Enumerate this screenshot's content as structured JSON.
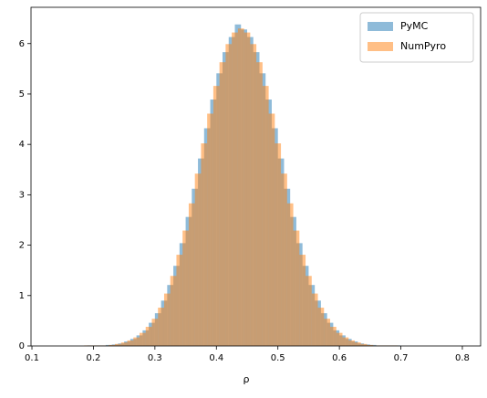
{
  "chart_data": {
    "type": "histogram",
    "xlabel": "ρ",
    "xlim": [
      0.0985,
      0.8297
    ],
    "ylim": [
      0,
      6.72
    ],
    "xticks": [
      0.1,
      0.2,
      0.3,
      0.4,
      0.5,
      0.6,
      0.7,
      0.8
    ],
    "yticks": [
      0,
      1,
      2,
      3,
      4,
      5,
      6
    ],
    "legend": "upper right",
    "series": [
      {
        "name": "PyMC",
        "color": "#1f77b4",
        "bins": [
          0.19,
          0.2,
          0.21,
          0.22,
          0.23,
          0.24,
          0.25,
          0.26,
          0.27,
          0.28,
          0.29,
          0.3,
          0.31,
          0.32,
          0.33,
          0.34,
          0.35,
          0.36,
          0.37,
          0.38,
          0.39,
          0.4,
          0.41,
          0.42,
          0.43,
          0.44,
          0.45,
          0.46,
          0.47,
          0.48,
          0.49,
          0.5,
          0.51,
          0.52,
          0.53,
          0.54,
          0.55,
          0.56,
          0.57,
          0.58,
          0.59,
          0.6,
          0.61,
          0.62,
          0.63,
          0.64,
          0.65,
          0.66,
          0.67,
          0.68,
          0.69,
          0.7
        ],
        "values": [
          0.01,
          0.01,
          0.01,
          0.02,
          0.03,
          0.05,
          0.09,
          0.14,
          0.21,
          0.31,
          0.46,
          0.65,
          0.9,
          1.21,
          1.59,
          2.04,
          2.56,
          3.12,
          3.72,
          4.32,
          4.89,
          5.41,
          5.83,
          6.13,
          6.38,
          6.28,
          6.13,
          5.83,
          5.41,
          4.89,
          4.32,
          3.72,
          3.12,
          2.56,
          2.04,
          1.59,
          1.21,
          0.9,
          0.65,
          0.46,
          0.31,
          0.21,
          0.14,
          0.09,
          0.05,
          0.03,
          0.02,
          0.01,
          0.01,
          0.01,
          0.01
        ]
      },
      {
        "name": "NumPyro",
        "color": "#ff7f0e",
        "bins": [
          0.185,
          0.195,
          0.205,
          0.215,
          0.225,
          0.235,
          0.245,
          0.255,
          0.265,
          0.275,
          0.285,
          0.295,
          0.305,
          0.315,
          0.325,
          0.335,
          0.345,
          0.355,
          0.365,
          0.375,
          0.385,
          0.395,
          0.405,
          0.415,
          0.425,
          0.435,
          0.445,
          0.455,
          0.465,
          0.475,
          0.485,
          0.495,
          0.505,
          0.515,
          0.525,
          0.535,
          0.545,
          0.555,
          0.565,
          0.575,
          0.585,
          0.595,
          0.605,
          0.615,
          0.625,
          0.635,
          0.645,
          0.655,
          0.665,
          0.675,
          0.685,
          0.695
        ],
        "values": [
          0.01,
          0.01,
          0.01,
          0.01,
          0.02,
          0.04,
          0.07,
          0.11,
          0.17,
          0.26,
          0.38,
          0.54,
          0.76,
          1.04,
          1.39,
          1.81,
          2.29,
          2.83,
          3.42,
          4.02,
          4.61,
          5.16,
          5.63,
          5.99,
          6.22,
          6.3,
          6.22,
          5.99,
          5.63,
          5.16,
          4.61,
          4.02,
          3.42,
          2.83,
          2.29,
          1.81,
          1.39,
          1.04,
          0.76,
          0.54,
          0.38,
          0.26,
          0.17,
          0.11,
          0.07,
          0.04,
          0.02,
          0.01,
          0.01,
          0.01,
          0.01
        ]
      }
    ]
  }
}
